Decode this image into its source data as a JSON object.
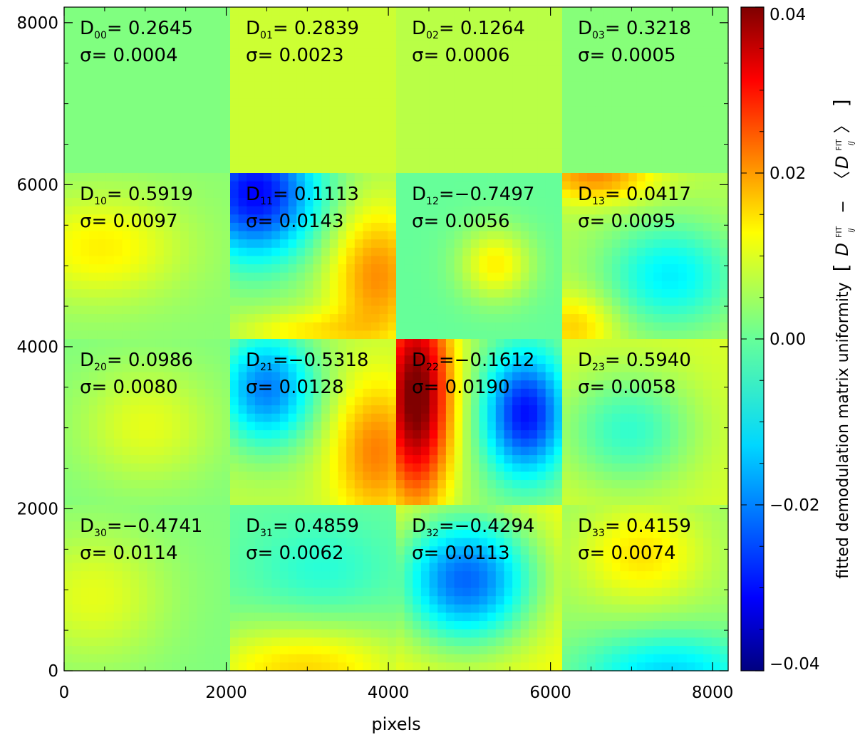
{
  "chart_data": {
    "type": "heatmap",
    "title": "",
    "xlabel": "pixels",
    "ylabel": "",
    "xlim": [
      0,
      8192
    ],
    "ylim": [
      0,
      8192
    ],
    "x_ticks": [
      {
        "value": 0,
        "label": "0"
      },
      {
        "value": 2000,
        "label": "2000"
      },
      {
        "value": 4000,
        "label": "4000"
      },
      {
        "value": 6000,
        "label": "6000"
      },
      {
        "value": 8000,
        "label": "8000"
      }
    ],
    "y_ticks": [
      {
        "value": 0,
        "label": "0"
      },
      {
        "value": 2000,
        "label": "2000"
      },
      {
        "value": 4000,
        "label": "4000"
      },
      {
        "value": 6000,
        "label": "6000"
      },
      {
        "value": 8000,
        "label": "8000"
      }
    ],
    "grid": false,
    "colorbar": {
      "colormap": "jet",
      "range": [
        -0.04,
        0.04
      ],
      "ticks": [
        {
          "value": 0.04,
          "label": "0.04"
        },
        {
          "value": 0.02,
          "label": "0.02"
        },
        {
          "value": 0.0,
          "label": "0.00"
        },
        {
          "value": -0.02,
          "label": "−0.02"
        },
        {
          "value": -0.04,
          "label": "−0.04"
        }
      ],
      "label_text": "fitted demodulation matrix uniformity",
      "label_bracket_left": "[",
      "label_symbol": "D",
      "label_sup": "FIT",
      "label_sub": "ij",
      "label_minus": "−",
      "label_angle_left": "〈",
      "label_angle_right": "〉",
      "label_bracket_right": "]"
    },
    "panels": [
      {
        "row": 0,
        "col": 0,
        "sub": "00",
        "eq": "=",
        "value": " 0.2645",
        "sigma": "σ= 0.0004",
        "base": 0.0,
        "blobs": []
      },
      {
        "row": 0,
        "col": 1,
        "sub": "01",
        "eq": "=",
        "value": " 0.2839",
        "sigma": "σ= 0.0023",
        "base": 0.006,
        "blobs": []
      },
      {
        "row": 0,
        "col": 2,
        "sub": "02",
        "eq": "=",
        "value": " 0.1264",
        "sigma": "σ= 0.0006",
        "base": 0.0045,
        "blobs": []
      },
      {
        "row": 0,
        "col": 3,
        "sub": "03",
        "eq": "=",
        "value": " 0.3218",
        "sigma": "σ= 0.0005",
        "base": 0.0005,
        "blobs": []
      },
      {
        "row": 1,
        "col": 0,
        "sub": "10",
        "eq": "=",
        "value": " 0.5919",
        "sigma": "σ= 0.0097",
        "base": 0.001,
        "blobs": [
          {
            "cx": 0.22,
            "cy": 0.45,
            "rx": 0.5,
            "ry": 0.32,
            "v": 0.01
          }
        ]
      },
      {
        "row": 1,
        "col": 1,
        "sub": "11",
        "eq": "=",
        "value": " 0.1113",
        "sigma": "σ= 0.0143",
        "base": 0.003,
        "blobs": [
          {
            "cx": 0.15,
            "cy": 0.12,
            "rx": 0.38,
            "ry": 0.4,
            "v": -0.033
          },
          {
            "cx": 0.88,
            "cy": 0.62,
            "rx": 0.28,
            "ry": 0.42,
            "v": 0.016
          },
          {
            "cx": 0.45,
            "cy": 0.95,
            "rx": 0.4,
            "ry": 0.12,
            "v": 0.008
          }
        ]
      },
      {
        "row": 1,
        "col": 2,
        "sub": "12",
        "eq": "=",
        "value": "−0.7497",
        "sigma": "σ= 0.0056",
        "base": -0.002,
        "blobs": [
          {
            "cx": 0.6,
            "cy": 0.55,
            "rx": 0.22,
            "ry": 0.22,
            "v": 0.013
          }
        ]
      },
      {
        "row": 1,
        "col": 3,
        "sub": "13",
        "eq": "=",
        "value": " 0.0417",
        "sigma": "σ= 0.0095",
        "base": 0.004,
        "blobs": [
          {
            "cx": 0.65,
            "cy": 0.62,
            "rx": 0.4,
            "ry": 0.32,
            "v": -0.015
          },
          {
            "cx": 0.2,
            "cy": 0.02,
            "rx": 0.35,
            "ry": 0.15,
            "v": 0.015
          },
          {
            "cx": 0.08,
            "cy": 0.92,
            "rx": 0.25,
            "ry": 0.2,
            "v": 0.01
          }
        ]
      },
      {
        "row": 2,
        "col": 0,
        "sub": "20",
        "eq": "=",
        "value": " 0.0986",
        "sigma": "σ= 0.0080",
        "base": 0.0,
        "blobs": [
          {
            "cx": 0.5,
            "cy": 0.52,
            "rx": 0.42,
            "ry": 0.36,
            "v": 0.008
          }
        ]
      },
      {
        "row": 2,
        "col": 1,
        "sub": "21",
        "eq": "=",
        "value": "−0.5318",
        "sigma": "σ= 0.0128",
        "base": 0.005,
        "blobs": [
          {
            "cx": 0.22,
            "cy": 0.3,
            "rx": 0.3,
            "ry": 0.35,
            "v": -0.025
          },
          {
            "cx": 0.88,
            "cy": 0.68,
            "rx": 0.26,
            "ry": 0.42,
            "v": 0.015
          }
        ]
      },
      {
        "row": 2,
        "col": 2,
        "sub": "22",
        "eq": "=",
        "value": "−0.1612",
        "sigma": "σ= 0.0190",
        "base": 0.002,
        "blobs": [
          {
            "cx": 0.12,
            "cy": 0.35,
            "rx": 0.22,
            "ry": 0.65,
            "v": 0.04
          },
          {
            "cx": 0.78,
            "cy": 0.45,
            "rx": 0.25,
            "ry": 0.38,
            "v": -0.031
          }
        ]
      },
      {
        "row": 2,
        "col": 3,
        "sub": "23",
        "eq": "=",
        "value": " 0.5940",
        "sigma": "σ= 0.0058",
        "base": 0.007,
        "blobs": [
          {
            "cx": 0.4,
            "cy": 0.55,
            "rx": 0.4,
            "ry": 0.35,
            "v": -0.013
          }
        ]
      },
      {
        "row": 3,
        "col": 0,
        "sub": "30",
        "eq": "=",
        "value": "−0.4741",
        "sigma": "σ= 0.0114",
        "base": 0.0,
        "blobs": [
          {
            "cx": 0.18,
            "cy": 0.55,
            "rx": 0.45,
            "ry": 0.4,
            "v": 0.008
          }
        ]
      },
      {
        "row": 3,
        "col": 1,
        "sub": "31",
        "eq": "=",
        "value": " 0.4859",
        "sigma": "σ= 0.0062",
        "base": -0.002,
        "blobs": [
          {
            "cx": 0.45,
            "cy": 1.0,
            "rx": 0.7,
            "ry": 0.3,
            "v": 0.015
          },
          {
            "cx": 0.55,
            "cy": 0.4,
            "rx": 0.4,
            "ry": 0.3,
            "v": -0.005
          }
        ]
      },
      {
        "row": 3,
        "col": 2,
        "sub": "32",
        "eq": "=",
        "value": "−0.4294",
        "sigma": "σ= 0.0113",
        "base": 0.01,
        "blobs": [
          {
            "cx": 0.42,
            "cy": 0.45,
            "rx": 0.42,
            "ry": 0.4,
            "v": -0.032
          }
        ]
      },
      {
        "row": 3,
        "col": 3,
        "sub": "33",
        "eq": "=",
        "value": " 0.4159",
        "sigma": "σ= 0.0074",
        "base": 0.002,
        "blobs": [
          {
            "cx": 0.48,
            "cy": 0.3,
            "rx": 0.38,
            "ry": 0.3,
            "v": 0.01
          },
          {
            "cx": 0.65,
            "cy": 1.02,
            "rx": 0.55,
            "ry": 0.25,
            "v": -0.015
          }
        ]
      }
    ]
  }
}
